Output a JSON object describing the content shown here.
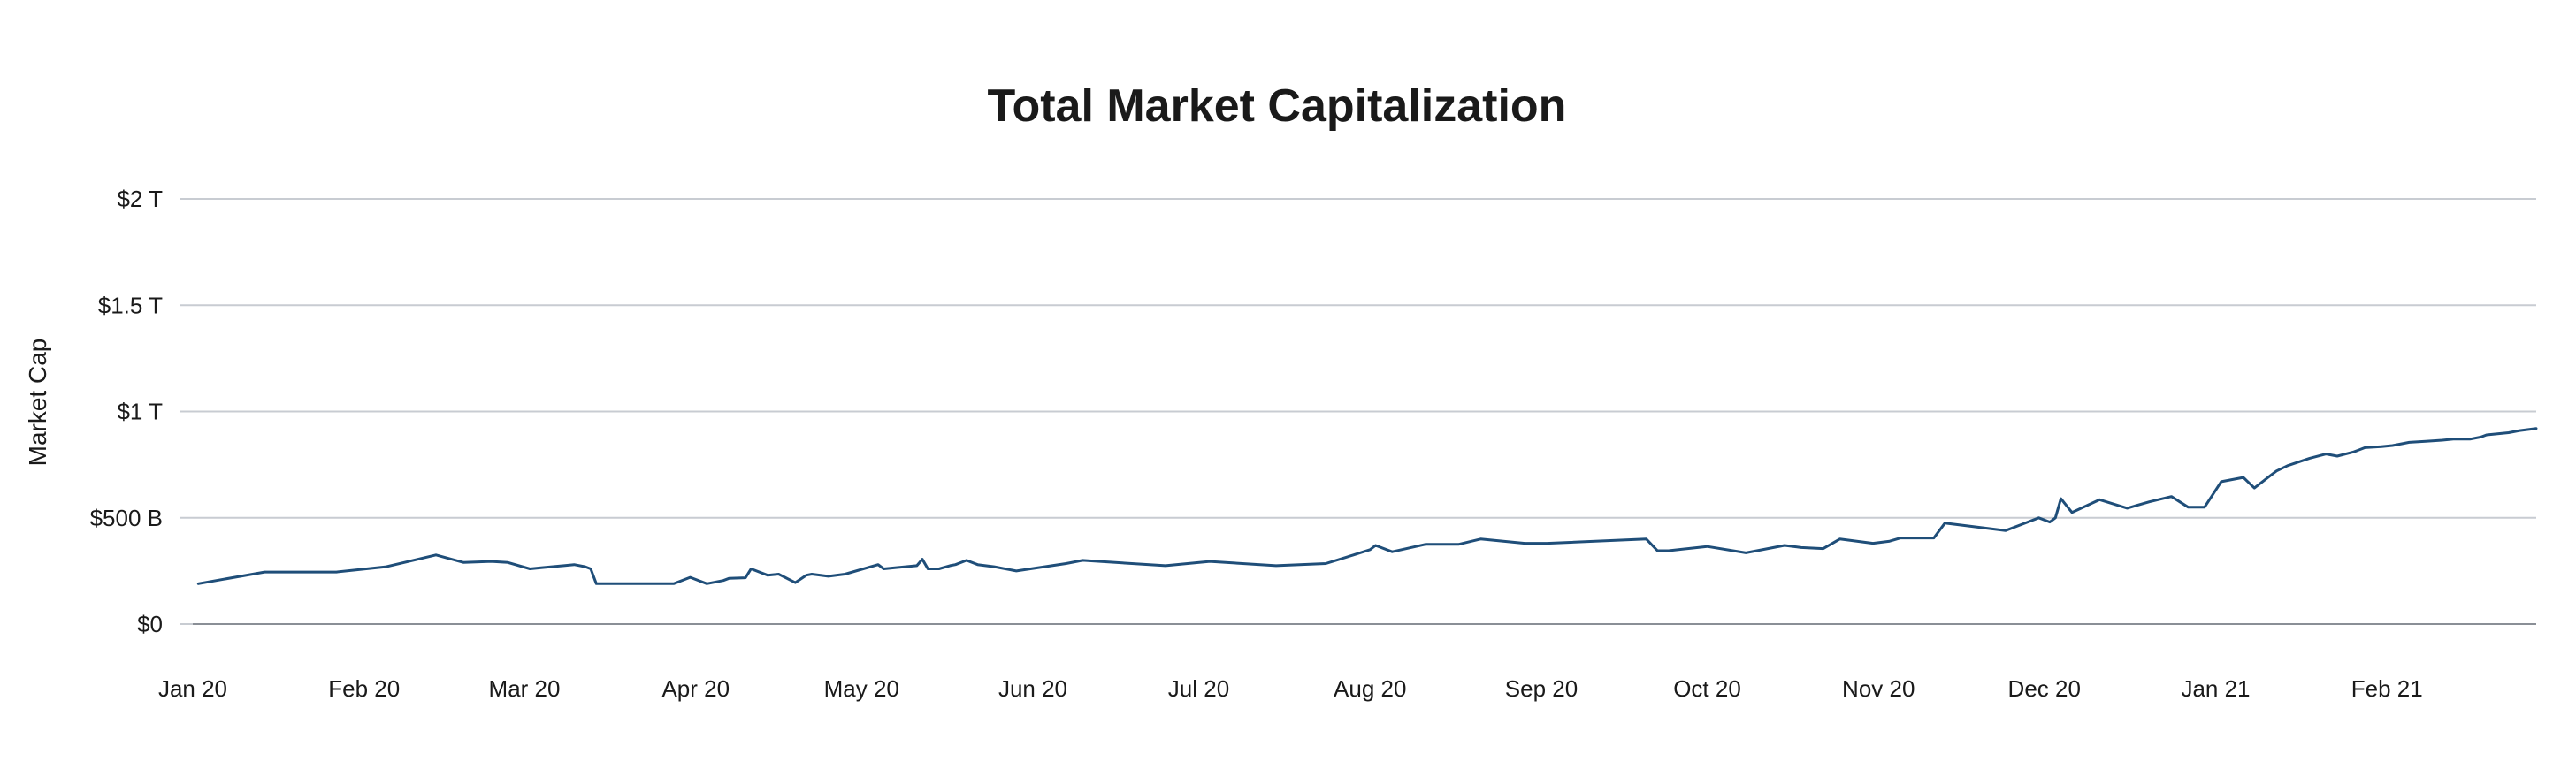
{
  "chart_data": {
    "type": "line",
    "title": "Total Market Capitalization",
    "xlabel": "",
    "ylabel": "Market Cap",
    "ylim": [
      0,
      2000
    ],
    "y_unit": "billion USD",
    "y_ticks": [
      {
        "value": 0,
        "label": "$0"
      },
      {
        "value": 500,
        "label": "$500 B"
      },
      {
        "value": 1000,
        "label": "$1 T"
      },
      {
        "value": 1500,
        "label": "$1.5 T"
      },
      {
        "value": 2000,
        "label": "$2 T"
      }
    ],
    "x_range": [
      "2020-01-01",
      "2021-02-28"
    ],
    "x_ticks": [
      {
        "date": "2020-01-01",
        "label": "Jan 20"
      },
      {
        "date": "2020-02-01",
        "label": "Feb 20"
      },
      {
        "date": "2020-03-01",
        "label": "Mar 20"
      },
      {
        "date": "2020-04-01",
        "label": "Apr 20"
      },
      {
        "date": "2020-05-01",
        "label": "May 20"
      },
      {
        "date": "2020-06-01",
        "label": "Jun 20"
      },
      {
        "date": "2020-07-01",
        "label": "Jul 20"
      },
      {
        "date": "2020-08-01",
        "label": "Aug 20"
      },
      {
        "date": "2020-09-01",
        "label": "Sep 20"
      },
      {
        "date": "2020-10-01",
        "label": "Oct 20"
      },
      {
        "date": "2020-11-01",
        "label": "Nov 20"
      },
      {
        "date": "2020-12-01",
        "label": "Dec 20"
      },
      {
        "date": "2021-01-01",
        "label": "Jan 21"
      },
      {
        "date": "2021-02-01",
        "label": "Feb 21"
      }
    ],
    "grid": true,
    "legend": "none",
    "colors": {
      "line": "#1f4e79",
      "grid": "#c8ccd2",
      "baseline": "#8a8f96"
    },
    "series": [
      {
        "x": [
          "2020-01-02",
          "2020-01-14",
          "2020-01-27",
          "2020-02-05",
          "2020-02-14",
          "2020-02-19",
          "2020-02-24",
          "2020-02-27",
          "2020-03-02",
          "2020-03-04",
          "2020-03-10",
          "2020-03-12",
          "2020-03-13",
          "2020-03-14",
          "2020-03-28",
          "2020-03-31",
          "2020-04-03",
          "2020-04-06",
          "2020-04-07",
          "2020-04-10",
          "2020-04-11",
          "2020-04-14",
          "2020-04-16",
          "2020-04-19",
          "2020-04-21",
          "2020-04-22",
          "2020-04-25",
          "2020-04-28",
          "2020-05-04",
          "2020-05-05",
          "2020-05-11",
          "2020-05-12",
          "2020-05-13",
          "2020-05-15",
          "2020-05-17",
          "2020-05-18",
          "2020-05-20",
          "2020-05-22",
          "2020-05-25",
          "2020-05-29",
          "2020-06-07",
          "2020-06-10",
          "2020-06-25",
          "2020-07-03",
          "2020-07-15",
          "2020-07-24",
          "2020-07-29",
          "2020-08-01",
          "2020-08-02",
          "2020-08-05",
          "2020-08-11",
          "2020-08-17",
          "2020-08-21",
          "2020-08-29",
          "2020-08-31",
          "2020-09-02",
          "2020-09-20",
          "2020-09-22",
          "2020-09-24",
          "2020-10-01",
          "2020-10-08",
          "2020-10-15",
          "2020-10-18",
          "2020-10-22",
          "2020-10-25",
          "2020-10-31",
          "2020-11-03",
          "2020-11-05",
          "2020-11-08",
          "2020-11-11",
          "2020-11-13",
          "2020-11-24",
          "2020-11-27",
          "2020-11-30",
          "2020-12-02",
          "2020-12-03",
          "2020-12-04",
          "2020-12-06",
          "2020-12-11",
          "2020-12-16",
          "2020-12-20",
          "2020-12-24",
          "2020-12-27",
          "2020-12-30",
          "2021-01-02",
          "2021-01-06",
          "2021-01-08",
          "2021-01-11",
          "2021-01-12",
          "2021-01-14",
          "2021-01-18",
          "2021-01-21",
          "2021-01-23",
          "2021-01-26",
          "2021-01-28",
          "2021-01-31",
          "2021-02-02",
          "2021-02-04",
          "2021-02-05",
          "2021-02-08",
          "2021-02-11",
          "2021-02-13",
          "2021-02-16",
          "2021-02-18",
          "2021-02-19",
          "2021-02-23",
          "2021-02-25",
          "2021-02-28"
        ],
        "values": [
          190,
          245,
          245,
          270,
          325,
          290,
          295,
          290,
          260,
          265,
          280,
          270,
          260,
          190,
          190,
          220,
          190,
          205,
          215,
          218,
          260,
          230,
          235,
          195,
          230,
          235,
          225,
          235,
          280,
          260,
          275,
          305,
          260,
          260,
          275,
          280,
          300,
          280,
          270,
          250,
          285,
          300,
          275,
          295,
          275,
          285,
          325,
          350,
          370,
          340,
          375,
          375,
          400,
          380,
          380,
          380,
          400,
          345,
          345,
          365,
          335,
          370,
          360,
          355,
          400,
          380,
          390,
          405,
          405,
          405,
          475,
          440,
          470,
          500,
          480,
          500,
          590,
          525,
          585,
          545,
          575,
          600,
          550,
          550,
          670,
          690,
          640,
          700,
          720,
          745,
          780,
          800,
          790,
          810,
          830,
          835,
          840,
          850,
          855,
          860,
          865,
          870,
          870,
          880,
          890,
          900,
          910,
          920
        ]
      }
    ]
  }
}
